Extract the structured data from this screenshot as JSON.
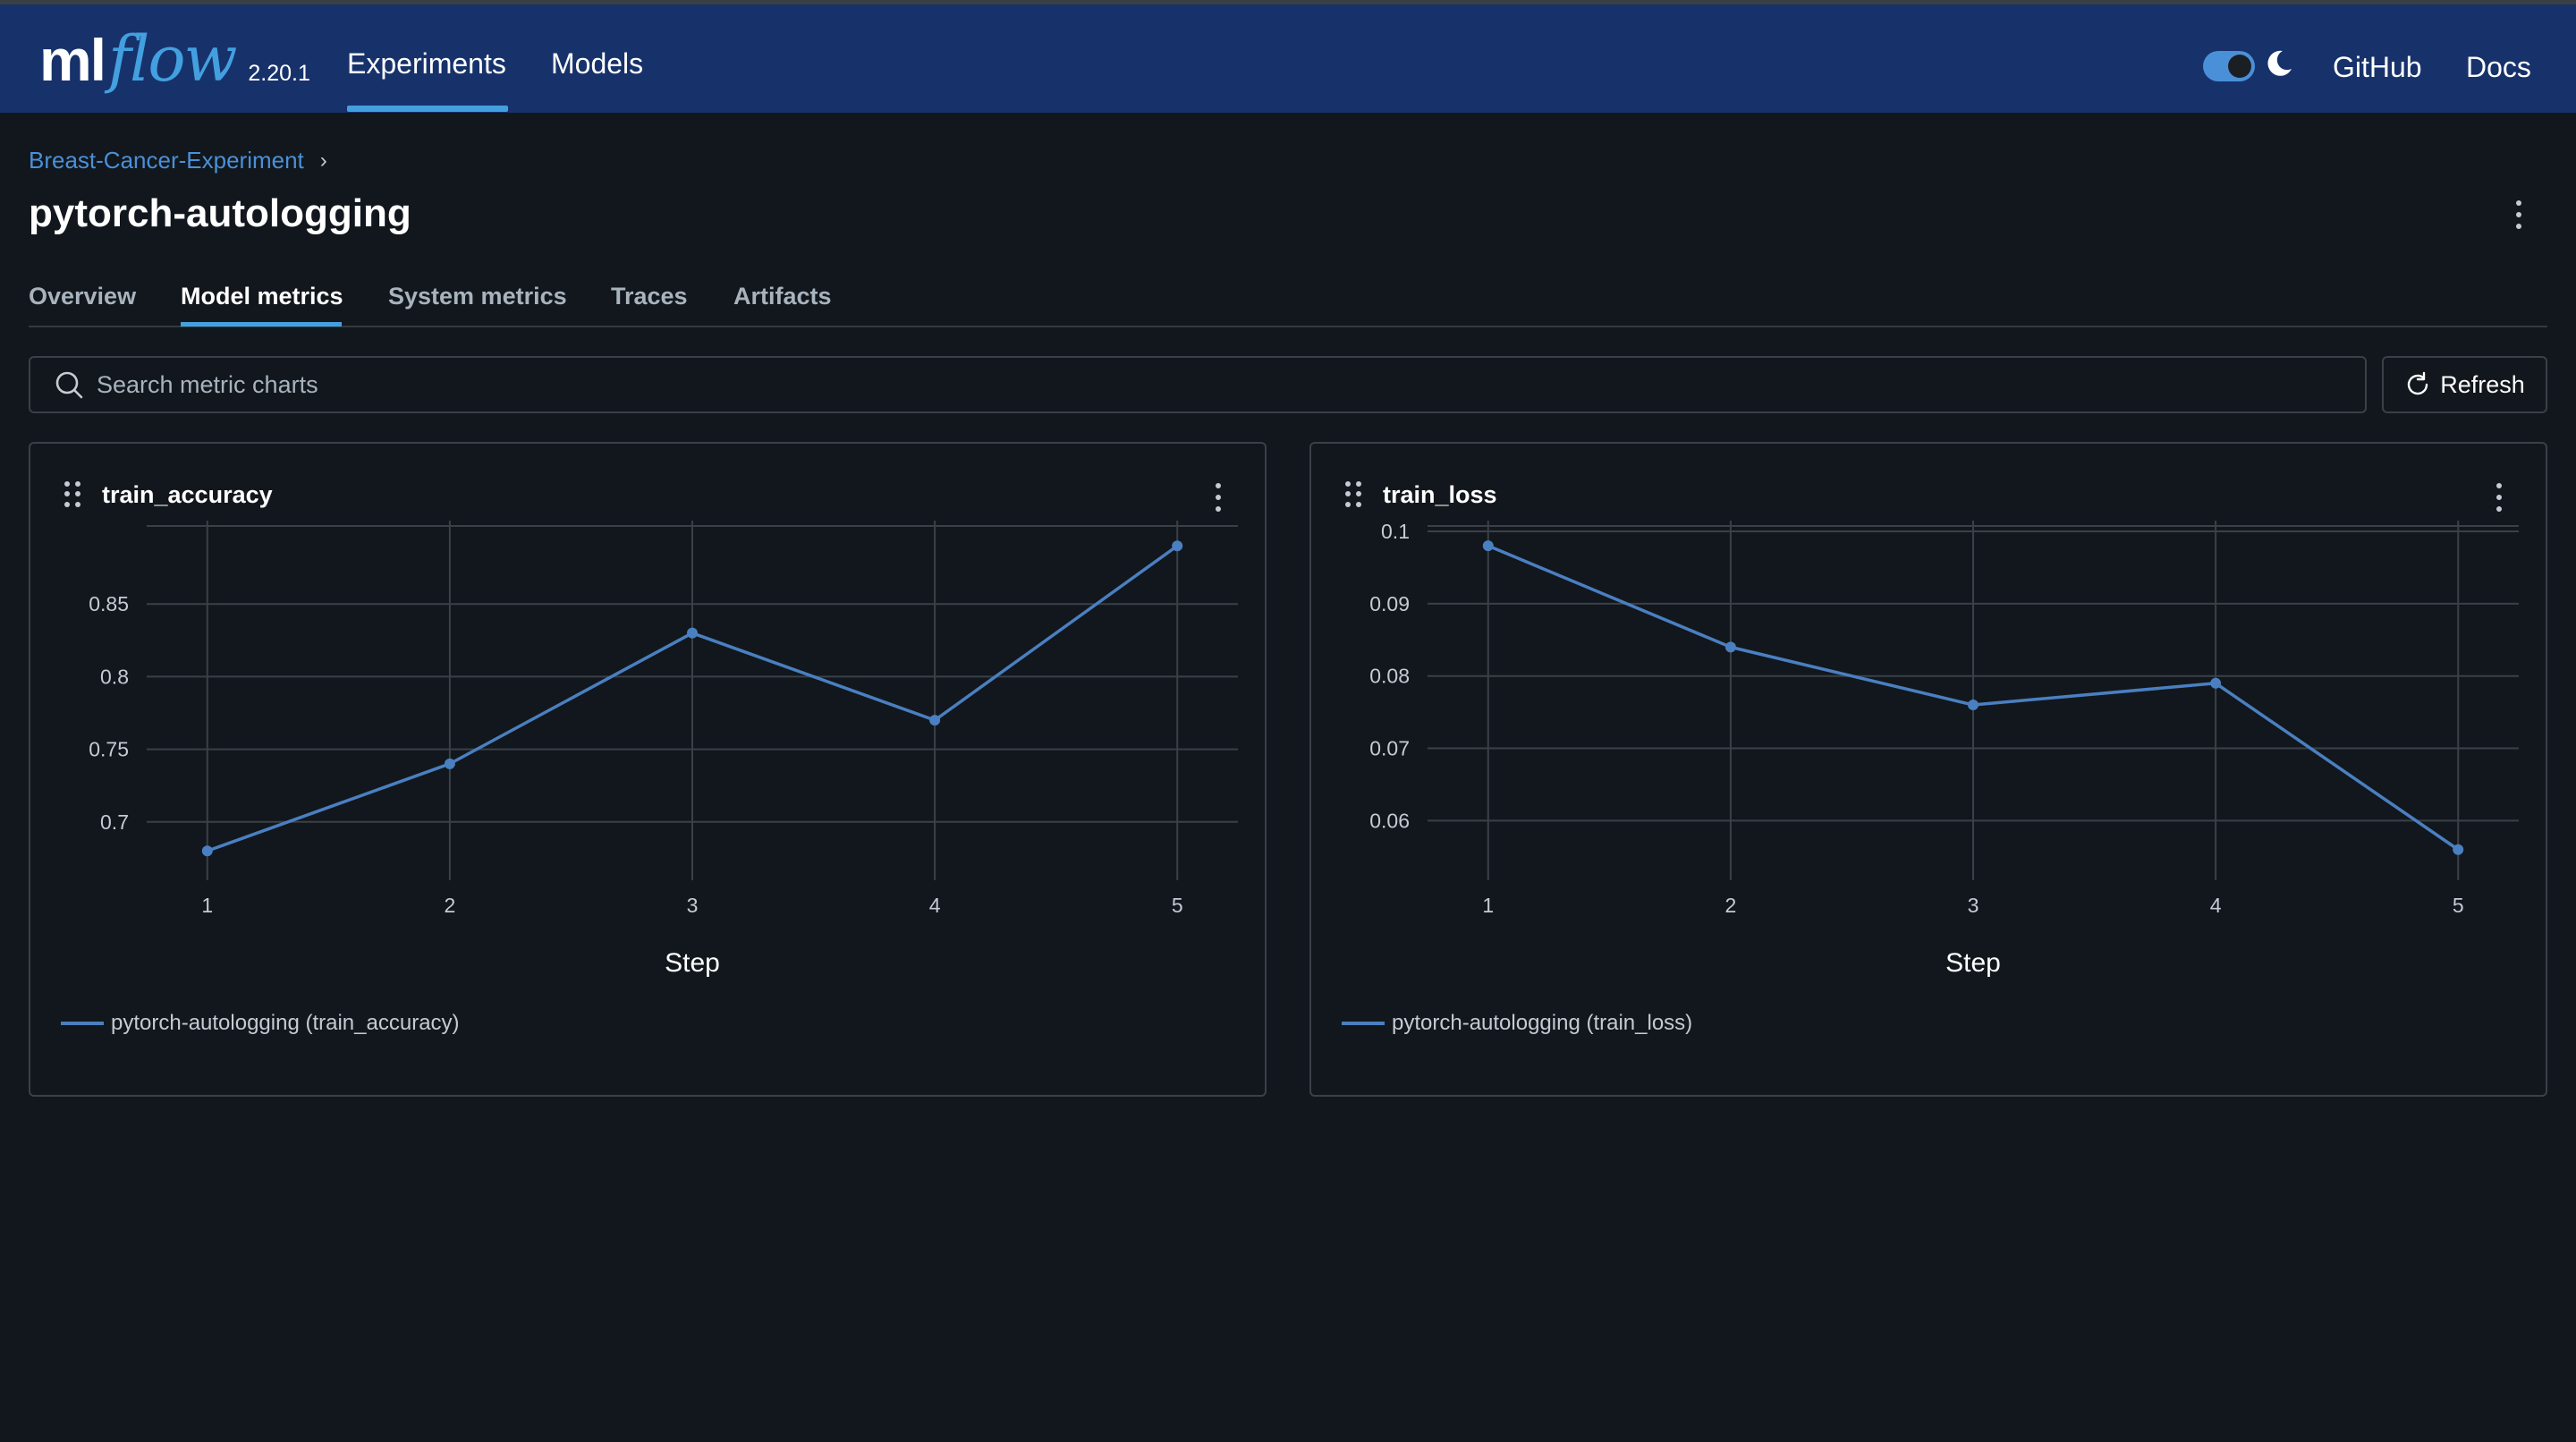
{
  "nav": {
    "logo_ml": "ml",
    "logo_flow": "flow",
    "version": "2.20.1",
    "items": [
      {
        "label": "Experiments",
        "active": true
      },
      {
        "label": "Models",
        "active": false
      }
    ],
    "github": "GitHub",
    "docs": "Docs",
    "dark_mode": true
  },
  "breadcrumb": {
    "experiment": "Breast-Cancer-Experiment",
    "separator": "›"
  },
  "page": {
    "title": "pytorch-autologging"
  },
  "tabs": [
    {
      "label": "Overview",
      "active": false
    },
    {
      "label": "Model metrics",
      "active": true
    },
    {
      "label": "System metrics",
      "active": false
    },
    {
      "label": "Traces",
      "active": false
    },
    {
      "label": "Artifacts",
      "active": false
    }
  ],
  "search": {
    "placeholder": "Search metric charts",
    "value": ""
  },
  "refresh_label": "Refresh",
  "colors": {
    "accent": "#43a0e0",
    "navbar": "#17326b",
    "series": "#4a7fc1",
    "background": "#11171c"
  },
  "chart_data": [
    {
      "type": "line",
      "title": "train_accuracy",
      "xlabel": "Step",
      "ylabel": "",
      "x": [
        1,
        2,
        3,
        4,
        5
      ],
      "series": [
        {
          "name": "pytorch-autologging (train_accuracy)",
          "values": [
            0.68,
            0.74,
            0.83,
            0.77,
            0.89
          ]
        }
      ],
      "xticks": [
        1,
        2,
        3,
        4,
        5
      ],
      "yticks": [
        0.7,
        0.75,
        0.8,
        0.85
      ],
      "ytick_labels": [
        "0.7",
        "0.75",
        "0.8",
        "0.85"
      ],
      "xlim": [
        0.75,
        5.25
      ],
      "ylim": [
        0.666,
        0.9
      ],
      "grid": true,
      "legend": "bottom-left"
    },
    {
      "type": "line",
      "title": "train_loss",
      "xlabel": "Step",
      "ylabel": "",
      "x": [
        1,
        2,
        3,
        4,
        5
      ],
      "series": [
        {
          "name": "pytorch-autologging (train_loss)",
          "values": [
            0.098,
            0.084,
            0.076,
            0.079,
            0.056
          ]
        }
      ],
      "xticks": [
        1,
        2,
        3,
        4,
        5
      ],
      "yticks": [
        0.06,
        0.07,
        0.08,
        0.09,
        0.1
      ],
      "ytick_labels": [
        "0.06",
        "0.07",
        "0.08",
        "0.09",
        "0.1"
      ],
      "xlim": [
        0.75,
        5.25
      ],
      "ylim": [
        0.053,
        0.1
      ],
      "grid": true,
      "legend": "bottom-left"
    }
  ]
}
